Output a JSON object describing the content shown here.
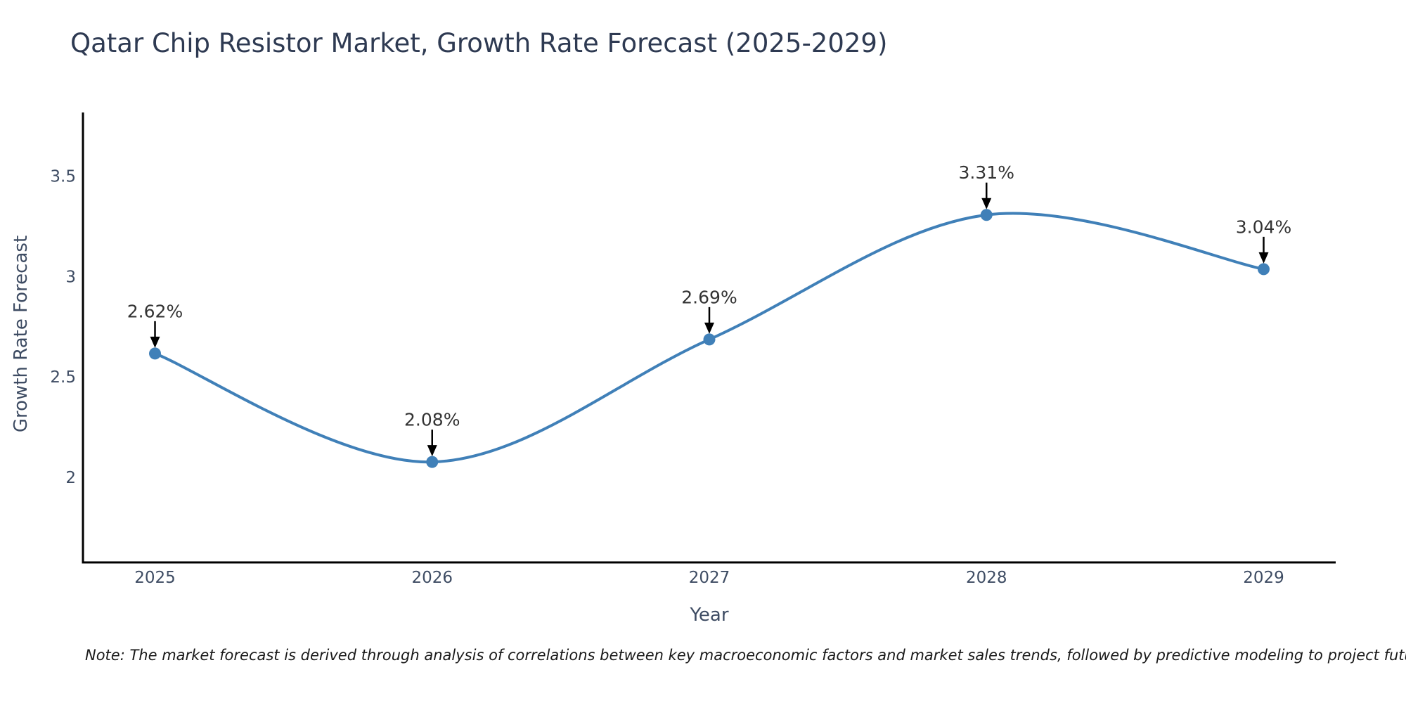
{
  "chart_data": {
    "type": "line",
    "title": "Qatar Chip Resistor Market, Growth Rate Forecast (2025-2029)",
    "xlabel": "Year",
    "ylabel": "Growth Rate Forecast",
    "x": [
      2025,
      2026,
      2027,
      2028,
      2029
    ],
    "series": [
      {
        "name": "Growth Rate Forecast",
        "values": [
          2.62,
          2.08,
          2.69,
          3.31,
          3.04
        ]
      }
    ],
    "point_labels": [
      "2.62%",
      "2.08%",
      "2.69%",
      "3.31%",
      "3.04%"
    ],
    "xticks": [
      "2025",
      "2026",
      "2027",
      "2028",
      "2029"
    ],
    "yticks": [
      2,
      2.5,
      3,
      3.5
    ],
    "ytick_labels": [
      "2",
      "2.5",
      "3",
      "3.5"
    ],
    "xlim": [
      2024.74,
      2029.26
    ],
    "ylim": [
      1.58,
      3.82
    ],
    "grid": false,
    "legend": "none",
    "line_smooth": true,
    "marker": "circle",
    "annotations_have_arrows": true,
    "colors": {
      "line": "#4080b8",
      "marker": "#4080b8",
      "spine": "#000000",
      "title_text": "#2e3a52",
      "tick_text": "#3e4c63",
      "axis_label_text": "#3e4c63",
      "annotation_text": "#333333",
      "arrow": "#000000",
      "note_text": "#1a1a1a",
      "background": "#ffffff"
    }
  },
  "note": {
    "text": "Note: The market forecast is derived through analysis of correlations between key macroeconomic factors and market sales trends, followed by predictive modeling to project future sales"
  }
}
